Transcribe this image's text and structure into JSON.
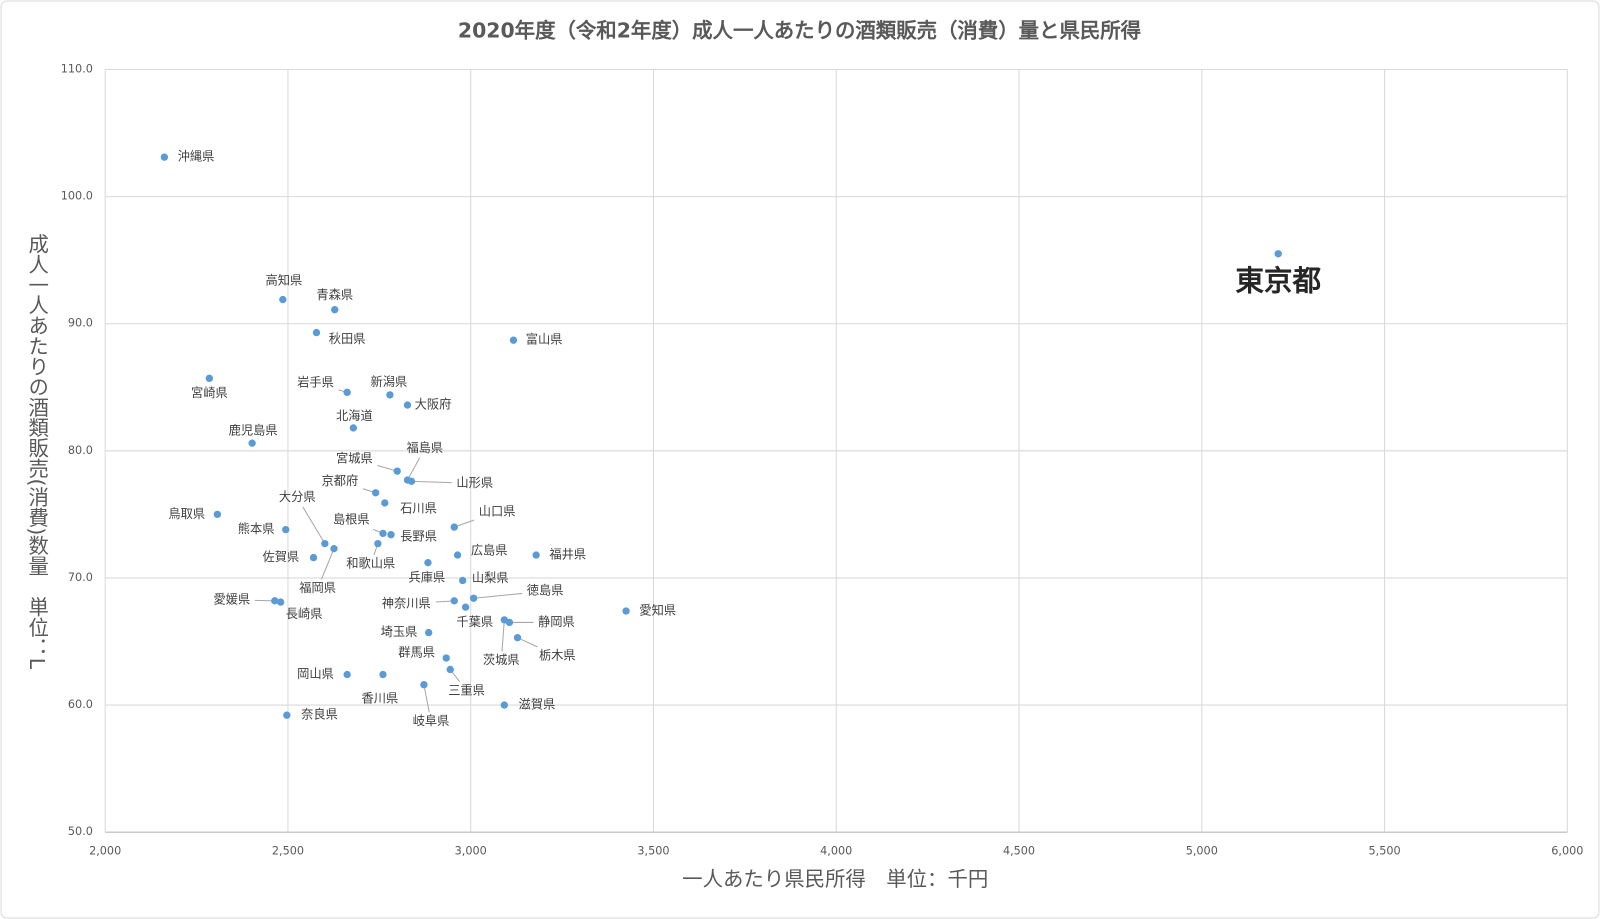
{
  "chart_data": {
    "type": "scatter",
    "title": "2020年度（令和2年度）成人一人あたりの酒類販売（消費）量と県民所得",
    "x_label": "一人あたり県民所得　単位：千円",
    "y_label": "成人一人あたりの酒類販売(消費)数量　単位：L",
    "color": "#5b9bd5",
    "grid": true,
    "xlim": [
      2000,
      6000
    ],
    "ylim": [
      50,
      110
    ],
    "xticks": [
      {
        "value": 2000,
        "label": "2,000"
      },
      {
        "value": 2500,
        "label": "2,500"
      },
      {
        "value": 3000,
        "label": "3,000"
      },
      {
        "value": 3500,
        "label": "3,500"
      },
      {
        "value": 4000,
        "label": "4,000"
      },
      {
        "value": 4500,
        "label": "4,500"
      },
      {
        "value": 5000,
        "label": "5,000"
      },
      {
        "value": 5500,
        "label": "5,500"
      },
      {
        "value": 6000,
        "label": "6,000"
      }
    ],
    "yticks": [
      {
        "value": 50,
        "label": "50.0"
      },
      {
        "value": 60,
        "label": "60.0"
      },
      {
        "value": 70,
        "label": "70.0"
      },
      {
        "value": 80,
        "label": "80.0"
      },
      {
        "value": 90,
        "label": "90.0"
      },
      {
        "value": 100,
        "label": "100.0"
      },
      {
        "value": 110,
        "label": "110.0"
      }
    ],
    "labels": [
      "沖縄県",
      "東京都",
      "高知県",
      "青森県",
      "秋田県",
      "富山県",
      "宮崎県",
      "岩手県",
      "新潟県",
      "大阪府",
      "北海道",
      "鹿児島県",
      "宮城県",
      "福島県",
      "山形県",
      "京都府",
      "石川県",
      "鳥取県",
      "山口県",
      "熊本県",
      "島根県",
      "長野県",
      "大分県",
      "和歌山県",
      "福岡県",
      "広島県",
      "福井県",
      "佐賀県",
      "兵庫県",
      "山梨県",
      "徳島県",
      "愛媛県",
      "長崎県",
      "神奈川県",
      "千葉県",
      "茨城県",
      "静岡県",
      "愛知県",
      "栃木県",
      "埼玉県",
      "群馬県",
      "三重県",
      "岡山県",
      "香川県",
      "岐阜県",
      "滋賀県",
      "奈良県"
    ],
    "x": [
      2162,
      5209,
      2486,
      2628,
      2578,
      3117,
      2285,
      2662,
      2779,
      2827,
      2679,
      2402,
      2799,
      2827,
      2838,
      2740,
      2765,
      2307,
      2955,
      2494,
      2760,
      2782,
      2601,
      2746,
      2626,
      2964,
      3179,
      2570,
      2883,
      2978,
      3008,
      2464,
      2480,
      2955,
      2986,
      3092,
      3106,
      3425,
      3128,
      2885,
      2933,
      2944,
      2662,
      2760,
      2872,
      3092,
      2497
    ],
    "values": [
      103.1,
      95.5,
      91.9,
      91.1,
      89.3,
      88.7,
      85.7,
      84.6,
      84.4,
      83.6,
      81.8,
      80.6,
      78.4,
      77.7,
      77.6,
      76.7,
      75.9,
      75.0,
      74.0,
      73.8,
      73.5,
      73.4,
      72.7,
      72.7,
      72.3,
      71.8,
      71.8,
      71.6,
      71.2,
      69.8,
      68.4,
      68.2,
      68.1,
      68.2,
      67.7,
      66.7,
      66.5,
      67.4,
      65.3,
      65.7,
      63.7,
      62.8,
      62.4,
      62.4,
      61.6,
      60.0,
      59.2
    ]
  }
}
